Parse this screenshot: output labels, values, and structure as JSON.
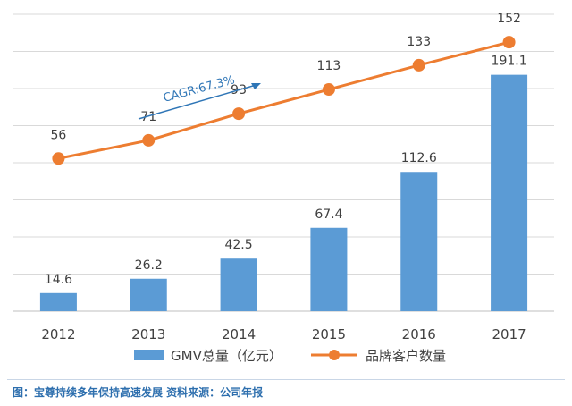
{
  "caption": "图：宝尊持续多年保持高速发展 资料来源：公司年报",
  "chart_data": {
    "type": "bar+line",
    "categories": [
      "2012",
      "2013",
      "2014",
      "2015",
      "2016",
      "2017"
    ],
    "series": [
      {
        "name": "GMV总量（亿元）",
        "type": "bar",
        "values": [
          14.6,
          26.2,
          42.5,
          67.4,
          112.6,
          191.1
        ],
        "labels": [
          "14.6",
          "26.2",
          "42.5",
          "67.4",
          "112.6",
          "191.1"
        ],
        "color": "#5b9bd5"
      },
      {
        "name": "品牌客户数量",
        "type": "line",
        "values": [
          56,
          71,
          93,
          113,
          133,
          152
        ],
        "labels": [
          "56",
          "71",
          "93",
          "113",
          "133",
          "152"
        ],
        "color": "#ed7d31"
      }
    ],
    "bar_ylim": [
      0,
      240
    ],
    "line_ylim": [
      -70,
      175
    ],
    "annotation": "CAGR:67.3%",
    "annotation_color": "#2e75b6",
    "grid": true,
    "legend_position": "bottom"
  }
}
